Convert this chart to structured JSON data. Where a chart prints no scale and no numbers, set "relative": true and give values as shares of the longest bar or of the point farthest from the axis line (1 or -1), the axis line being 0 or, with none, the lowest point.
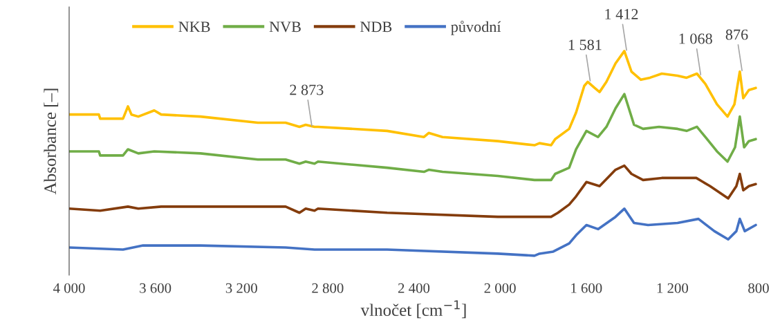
{
  "chart_data": {
    "type": "line",
    "relative": true,
    "xlabel": "vlnočet [cm$^{−1}$]",
    "ylabel": "Absorbance [–]",
    "xlim": [
      4000,
      800
    ],
    "xticks": [
      {
        "value": 4000,
        "label": "4 000"
      },
      {
        "value": 3600,
        "label": "3 600"
      },
      {
        "value": 3200,
        "label": "3 200"
      },
      {
        "value": 2800,
        "label": "2 800"
      },
      {
        "value": 2400,
        "label": "2 400"
      },
      {
        "value": 2000,
        "label": "2 000"
      },
      {
        "value": 1600,
        "label": "1 600"
      },
      {
        "value": 1200,
        "label": "1 200"
      },
      {
        "value": 800,
        "label": "800"
      }
    ],
    "grid": false,
    "legend": "top",
    "marker": "none",
    "line_style": "solid",
    "series": [
      {
        "name": "NKB",
        "color": "#ffc000",
        "x": [
          4000,
          3862,
          3856,
          3750,
          3727,
          3711,
          3679,
          3605,
          3573,
          3390,
          3124,
          2995,
          2931,
          2902,
          2861,
          2845,
          2524,
          2353,
          2331,
          2267,
          2010,
          1840,
          1817,
          1763,
          1744,
          1679,
          1647,
          1609,
          1593,
          1561,
          1538,
          1506,
          1464,
          1423,
          1390,
          1346,
          1304,
          1249,
          1176,
          1134,
          1086,
          1047,
          993,
          944,
          912,
          887,
          871,
          845,
          813
        ],
        "values": [
          0.69,
          0.69,
          0.67,
          0.67,
          0.73,
          0.69,
          0.68,
          0.71,
          0.69,
          0.68,
          0.65,
          0.65,
          0.63,
          0.64,
          0.63,
          0.63,
          0.61,
          0.58,
          0.6,
          0.58,
          0.56,
          0.54,
          0.55,
          0.54,
          0.57,
          0.62,
          0.7,
          0.83,
          0.85,
          0.82,
          0.8,
          0.85,
          0.94,
          1.0,
          0.9,
          0.86,
          0.87,
          0.89,
          0.88,
          0.87,
          0.89,
          0.84,
          0.74,
          0.68,
          0.74,
          0.9,
          0.77,
          0.81,
          0.82
        ]
      },
      {
        "name": "NVB",
        "color": "#70ad47",
        "x": [
          4000,
          3862,
          3856,
          3750,
          3727,
          3679,
          3605,
          3390,
          3124,
          2995,
          2931,
          2902,
          2861,
          2845,
          2524,
          2353,
          2331,
          2267,
          2010,
          1840,
          1817,
          1763,
          1744,
          1679,
          1647,
          1599,
          1545,
          1506,
          1464,
          1423,
          1378,
          1336,
          1262,
          1176,
          1134,
          1086,
          1047,
          993,
          944,
          909,
          887,
          867,
          845,
          813
        ],
        "values": [
          0.51,
          0.51,
          0.49,
          0.49,
          0.52,
          0.5,
          0.51,
          0.5,
          0.47,
          0.47,
          0.45,
          0.46,
          0.45,
          0.46,
          0.43,
          0.41,
          0.42,
          0.41,
          0.39,
          0.37,
          0.37,
          0.37,
          0.4,
          0.43,
          0.52,
          0.61,
          0.58,
          0.63,
          0.72,
          0.79,
          0.64,
          0.62,
          0.63,
          0.62,
          0.61,
          0.63,
          0.58,
          0.51,
          0.46,
          0.53,
          0.68,
          0.53,
          0.56,
          0.57
        ]
      },
      {
        "name": "NDB",
        "color": "#843c0c",
        "x": [
          4000,
          3856,
          3727,
          3679,
          3573,
          3390,
          3124,
          2995,
          2931,
          2902,
          2861,
          2845,
          2524,
          2010,
          1840,
          1817,
          1763,
          1731,
          1679,
          1647,
          1599,
          1538,
          1464,
          1423,
          1390,
          1336,
          1249,
          1089,
          1025,
          941,
          903,
          887,
          871,
          845,
          813
        ],
        "values": [
          0.23,
          0.22,
          0.24,
          0.23,
          0.24,
          0.24,
          0.24,
          0.24,
          0.21,
          0.23,
          0.22,
          0.23,
          0.21,
          0.19,
          0.19,
          0.19,
          0.19,
          0.21,
          0.25,
          0.29,
          0.36,
          0.34,
          0.42,
          0.44,
          0.4,
          0.37,
          0.38,
          0.38,
          0.34,
          0.28,
          0.34,
          0.4,
          0.32,
          0.34,
          0.35
        ]
      },
      {
        "name": "původní",
        "color": "#4472c4",
        "x": [
          4000,
          3750,
          3657,
          3390,
          2995,
          2861,
          2524,
          2010,
          1840,
          1817,
          1753,
          1679,
          1647,
          1599,
          1545,
          1464,
          1423,
          1378,
          1313,
          1176,
          1079,
          1005,
          941,
          903,
          887,
          864,
          813
        ],
        "values": [
          0.04,
          0.03,
          0.05,
          0.05,
          0.04,
          0.03,
          0.03,
          0.01,
          0.0,
          0.01,
          0.02,
          0.06,
          0.1,
          0.15,
          0.13,
          0.19,
          0.23,
          0.16,
          0.15,
          0.16,
          0.18,
          0.12,
          0.08,
          0.12,
          0.18,
          0.12,
          0.15
        ]
      }
    ],
    "annotations": [
      {
        "text": "2 873",
        "x": 2873,
        "y": 0.63
      },
      {
        "text": "1 581",
        "x": 1581,
        "y": 0.85
      },
      {
        "text": "1 412",
        "x": 1412,
        "y": 1.0
      },
      {
        "text": "1 068",
        "x": 1068,
        "y": 0.88
      },
      {
        "text": "876",
        "x": 876,
        "y": 0.9
      }
    ]
  }
}
